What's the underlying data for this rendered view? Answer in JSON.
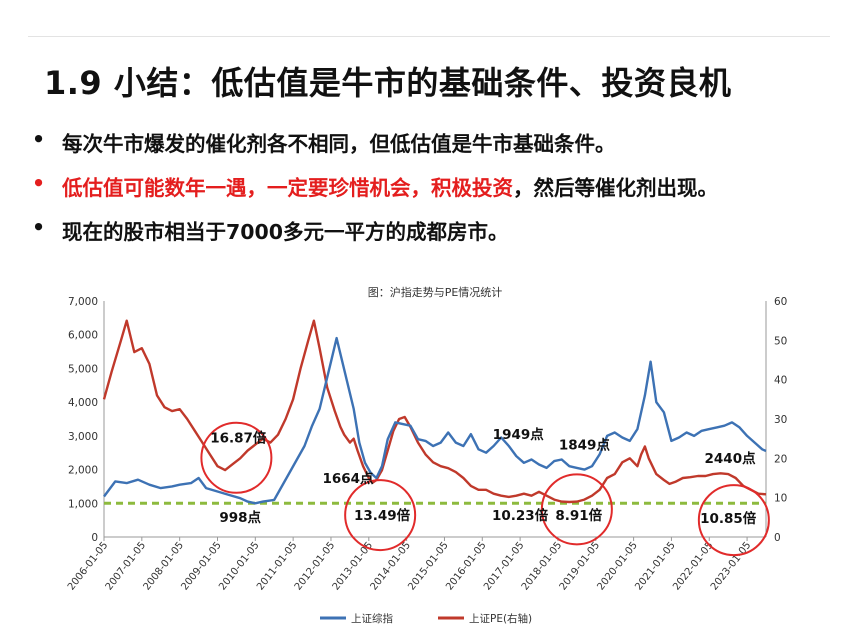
{
  "slide": {
    "title": "1.9  小结：低估值是牛市的基础条件、投资良机",
    "bullets": [
      {
        "marker": "•",
        "parts": [
          {
            "text": "每次牛市爆发的催化剂各不相同，但低估值是牛市基础条件。",
            "color": "#111111"
          }
        ]
      },
      {
        "marker": "•",
        "marker_color": "#e41e1e",
        "parts": [
          {
            "text": "低估值可能数年一遇，一定要珍惜机会，积极投资",
            "color": "#e41e1e"
          },
          {
            "text": "，然后等催化剂出现。",
            "color": "#111111"
          }
        ]
      },
      {
        "marker": "•",
        "parts": [
          {
            "text": "现在的股市相当于7000多元一平方的成都房市。",
            "color": "#111111"
          }
        ]
      }
    ]
  },
  "chart_data": {
    "type": "line",
    "title": "图：沪指走势与PE情况统计",
    "x_labels": [
      "2006-01-05",
      "2007-01-05",
      "2008-01-05",
      "2009-01-05",
      "2010-01-05",
      "2011-01-05",
      "2012-01-05",
      "2013-01-05",
      "2014-01-05",
      "2015-01-05",
      "2016-01-05",
      "2017-01-05",
      "2018-01-05",
      "2019-01-05",
      "2020-01-05",
      "2021-01-05",
      "2022-01-05",
      "2023-01-05"
    ],
    "x_range": [
      2006.0,
      2023.5
    ],
    "y_left": {
      "min": 0,
      "max": 7000,
      "ticks": [
        "0",
        "1,000",
        "2,000",
        "3,000",
        "4,000",
        "5,000",
        "6,000",
        "7,000"
      ]
    },
    "y_right": {
      "min": 0,
      "max": 60,
      "ticks": [
        "0",
        "10",
        "20",
        "30",
        "40",
        "50",
        "60"
      ]
    },
    "series": [
      {
        "name": "上证综指",
        "axis": "left",
        "color": "#3d72b4",
        "points": [
          [
            2006.0,
            1200
          ],
          [
            2006.3,
            1650
          ],
          [
            2006.6,
            1600
          ],
          [
            2006.9,
            1700
          ],
          [
            2007.2,
            1550
          ],
          [
            2007.5,
            1450
          ],
          [
            2007.8,
            1500
          ],
          [
            2008.0,
            1550
          ],
          [
            2008.3,
            1600
          ],
          [
            2008.5,
            1750
          ],
          [
            2008.7,
            1450
          ],
          [
            2009.0,
            1350
          ],
          [
            2009.3,
            1250
          ],
          [
            2009.6,
            1150
          ],
          [
            2009.8,
            1050
          ],
          [
            2010.0,
            1000
          ],
          [
            2010.2,
            1050
          ],
          [
            2010.5,
            1100
          ],
          [
            2010.7,
            1500
          ],
          [
            2010.9,
            1900
          ],
          [
            2011.1,
            2300
          ],
          [
            2011.3,
            2700
          ],
          [
            2011.5,
            3300
          ],
          [
            2011.7,
            3800
          ],
          [
            2011.85,
            4500
          ],
          [
            2012.0,
            5200
          ],
          [
            2012.15,
            5900
          ],
          [
            2012.3,
            5200
          ],
          [
            2012.45,
            4500
          ],
          [
            2012.6,
            3800
          ],
          [
            2012.75,
            2800
          ],
          [
            2012.9,
            2200
          ],
          [
            2013.05,
            1900
          ],
          [
            2013.2,
            1750
          ],
          [
            2013.35,
            2100
          ],
          [
            2013.5,
            2900
          ],
          [
            2013.7,
            3400
          ],
          [
            2013.9,
            3350
          ],
          [
            2014.1,
            3300
          ],
          [
            2014.3,
            2900
          ],
          [
            2014.5,
            2850
          ],
          [
            2014.7,
            2700
          ],
          [
            2014.9,
            2800
          ],
          [
            2015.1,
            3100
          ],
          [
            2015.3,
            2800
          ],
          [
            2015.5,
            2700
          ],
          [
            2015.7,
            3050
          ],
          [
            2015.9,
            2600
          ],
          [
            2016.1,
            2500
          ],
          [
            2016.3,
            2700
          ],
          [
            2016.5,
            2950
          ],
          [
            2016.7,
            2700
          ],
          [
            2016.9,
            2400
          ],
          [
            2017.1,
            2200
          ],
          [
            2017.3,
            2300
          ],
          [
            2017.5,
            2150
          ],
          [
            2017.7,
            2050
          ],
          [
            2017.9,
            2250
          ],
          [
            2018.1,
            2300
          ],
          [
            2018.3,
            2100
          ],
          [
            2018.5,
            2050
          ],
          [
            2018.7,
            2000
          ],
          [
            2018.9,
            2100
          ],
          [
            2019.1,
            2450
          ],
          [
            2019.3,
            3000
          ],
          [
            2019.5,
            3100
          ],
          [
            2019.7,
            2950
          ],
          [
            2019.9,
            2850
          ],
          [
            2020.1,
            3200
          ],
          [
            2020.3,
            4200
          ],
          [
            2020.45,
            5200
          ],
          [
            2020.6,
            4000
          ],
          [
            2020.8,
            3700
          ],
          [
            2021.0,
            2850
          ],
          [
            2021.2,
            2950
          ],
          [
            2021.4,
            3100
          ],
          [
            2021.6,
            3000
          ],
          [
            2021.8,
            3150
          ],
          [
            2022.0,
            3200
          ],
          [
            2022.2,
            3250
          ],
          [
            2022.4,
            3300
          ],
          [
            2022.6,
            3400
          ],
          [
            2022.8,
            3250
          ],
          [
            2023.0,
            3000
          ],
          [
            2023.2,
            2800
          ],
          [
            2023.4,
            2600
          ],
          [
            2023.5,
            2550
          ]
        ]
      },
      {
        "name": "上证PE(右轴)",
        "axis": "right",
        "color": "#c0392b",
        "points": [
          [
            2006.0,
            35
          ],
          [
            2006.2,
            42
          ],
          [
            2006.45,
            50
          ],
          [
            2006.6,
            55
          ],
          [
            2006.8,
            47
          ],
          [
            2007.0,
            48
          ],
          [
            2007.2,
            44
          ],
          [
            2007.4,
            36
          ],
          [
            2007.6,
            33
          ],
          [
            2007.8,
            32
          ],
          [
            2008.0,
            32.5
          ],
          [
            2008.2,
            30
          ],
          [
            2008.4,
            27
          ],
          [
            2008.6,
            24
          ],
          [
            2008.8,
            21
          ],
          [
            2009.0,
            18
          ],
          [
            2009.2,
            17
          ],
          [
            2009.4,
            18.5
          ],
          [
            2009.6,
            20
          ],
          [
            2009.8,
            22
          ],
          [
            2010.0,
            23.5
          ],
          [
            2010.2,
            25
          ],
          [
            2010.4,
            24
          ],
          [
            2010.6,
            26
          ],
          [
            2010.8,
            30
          ],
          [
            2011.0,
            35
          ],
          [
            2011.2,
            43
          ],
          [
            2011.4,
            50
          ],
          [
            2011.55,
            55
          ],
          [
            2011.7,
            48
          ],
          [
            2011.9,
            38
          ],
          [
            2012.1,
            32
          ],
          [
            2012.25,
            28
          ],
          [
            2012.35,
            26
          ],
          [
            2012.5,
            24
          ],
          [
            2012.6,
            25
          ],
          [
            2012.7,
            22
          ],
          [
            2012.85,
            18
          ],
          [
            2013.0,
            15
          ],
          [
            2013.1,
            13.8
          ],
          [
            2013.2,
            14.5
          ],
          [
            2013.35,
            17
          ],
          [
            2013.5,
            22
          ],
          [
            2013.65,
            27
          ],
          [
            2013.8,
            30
          ],
          [
            2013.95,
            30.5
          ],
          [
            2014.1,
            28
          ],
          [
            2014.3,
            24
          ],
          [
            2014.5,
            21
          ],
          [
            2014.7,
            19
          ],
          [
            2014.9,
            18
          ],
          [
            2015.1,
            17.5
          ],
          [
            2015.3,
            16.5
          ],
          [
            2015.5,
            15
          ],
          [
            2015.7,
            13
          ],
          [
            2015.9,
            12
          ],
          [
            2016.1,
            12
          ],
          [
            2016.3,
            11
          ],
          [
            2016.5,
            10.5
          ],
          [
            2016.7,
            10.2
          ],
          [
            2016.9,
            10.5
          ],
          [
            2017.1,
            11
          ],
          [
            2017.3,
            10.5
          ],
          [
            2017.5,
            11.5
          ],
          [
            2017.7,
            10.5
          ],
          [
            2017.9,
            9.5
          ],
          [
            2018.1,
            9
          ],
          [
            2018.3,
            8.9
          ],
          [
            2018.5,
            9
          ],
          [
            2018.7,
            9.5
          ],
          [
            2018.9,
            10.5
          ],
          [
            2019.1,
            12
          ],
          [
            2019.3,
            15
          ],
          [
            2019.5,
            16
          ],
          [
            2019.7,
            19
          ],
          [
            2019.9,
            20
          ],
          [
            2020.1,
            18
          ],
          [
            2020.2,
            21
          ],
          [
            2020.3,
            23
          ],
          [
            2020.4,
            20
          ],
          [
            2020.6,
            16
          ],
          [
            2020.8,
            14.5
          ],
          [
            2020.95,
            13.5
          ],
          [
            2021.1,
            14
          ],
          [
            2021.3,
            15
          ],
          [
            2021.5,
            15.2
          ],
          [
            2021.7,
            15.5
          ],
          [
            2021.9,
            15.5
          ],
          [
            2022.1,
            16
          ],
          [
            2022.3,
            16.2
          ],
          [
            2022.5,
            16
          ],
          [
            2022.7,
            15
          ],
          [
            2022.9,
            13
          ],
          [
            2023.1,
            12
          ],
          [
            2023.3,
            11
          ],
          [
            2023.5,
            10.85
          ]
        ]
      }
    ],
    "reference_line": {
      "axis": "left",
      "value": 1000,
      "color": "#8dba3e",
      "style": "dashed"
    },
    "annotations": [
      {
        "text": "16.87倍",
        "x": 2009.55,
        "axis": "left",
        "y": 2800
      },
      {
        "text": "998点",
        "x": 2009.6,
        "axis": "left",
        "y": 450
      },
      {
        "text": "1664点",
        "x": 2012.45,
        "axis": "left",
        "y": 1600
      },
      {
        "text": "13.49倍",
        "x": 2013.35,
        "axis": "left",
        "y": 500
      },
      {
        "text": "1949点",
        "x": 2016.95,
        "axis": "left",
        "y": 2900
      },
      {
        "text": "1849点",
        "x": 2018.7,
        "axis": "left",
        "y": 2600
      },
      {
        "text": "10.23倍",
        "x": 2017.0,
        "axis": "left",
        "y": 500
      },
      {
        "text": "8.91倍",
        "x": 2018.55,
        "axis": "left",
        "y": 500
      },
      {
        "text": "2440点",
        "x": 2022.55,
        "axis": "left",
        "y": 2200
      },
      {
        "text": "10.85倍",
        "x": 2022.5,
        "axis": "left",
        "y": 420
      }
    ],
    "circles": [
      {
        "x": 2009.5,
        "axis": "left",
        "y": 2350,
        "color": "#e12b2b"
      },
      {
        "x": 2013.3,
        "axis": "left",
        "y": 650,
        "color": "#e12b2b"
      },
      {
        "x": 2018.5,
        "axis": "left",
        "y": 820,
        "color": "#e12b2b"
      },
      {
        "x": 2022.65,
        "axis": "left",
        "y": 500,
        "color": "#e12b2b"
      }
    ],
    "legend": {
      "placement": "bottom",
      "entries": [
        "上证综指",
        "上证PE(右轴)"
      ]
    }
  }
}
